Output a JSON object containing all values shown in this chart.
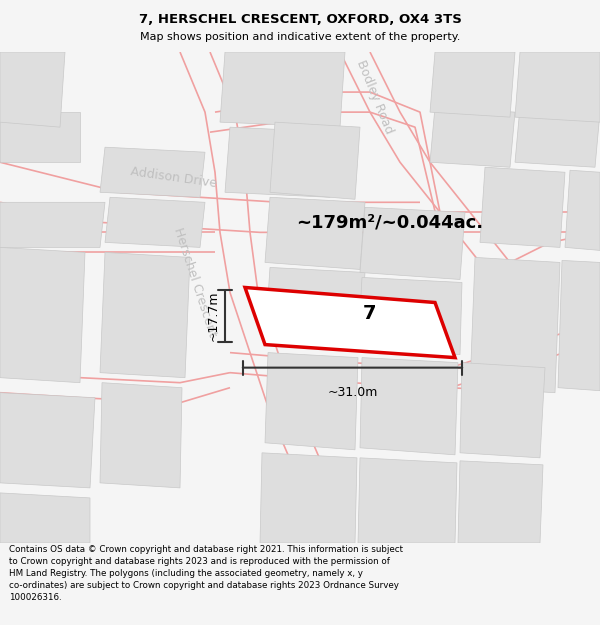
{
  "title": "7, HERSCHEL CRESCENT, OXFORD, OX4 3TS",
  "subtitle": "Map shows position and indicative extent of the property.",
  "area_text": "~179m²/~0.044ac.",
  "dim_width": "~31.0m",
  "dim_height": "~17.7m",
  "property_number": "7",
  "footnote": "Contains OS data © Crown copyright and database right 2021. This information is subject\nto Crown copyright and database rights 2023 and is reproduced with the permission of\nHM Land Registry. The polygons (including the associated geometry, namely x, y\nco-ordinates) are subject to Crown copyright and database rights 2023 Ordnance Survey\n100026316.",
  "bg_color": "#f5f5f5",
  "map_bg": "#f5f5f5",
  "building_fill": "#dedede",
  "building_edge": "#c8c8c8",
  "road_line_color": "#f0a0a0",
  "property_fill": "#ffffff",
  "property_edge": "#dd0000",
  "dim_line_color": "#333333",
  "street_label_color": "#c0c0c0",
  "title_color": "#000000",
  "footnote_color": "#000000"
}
